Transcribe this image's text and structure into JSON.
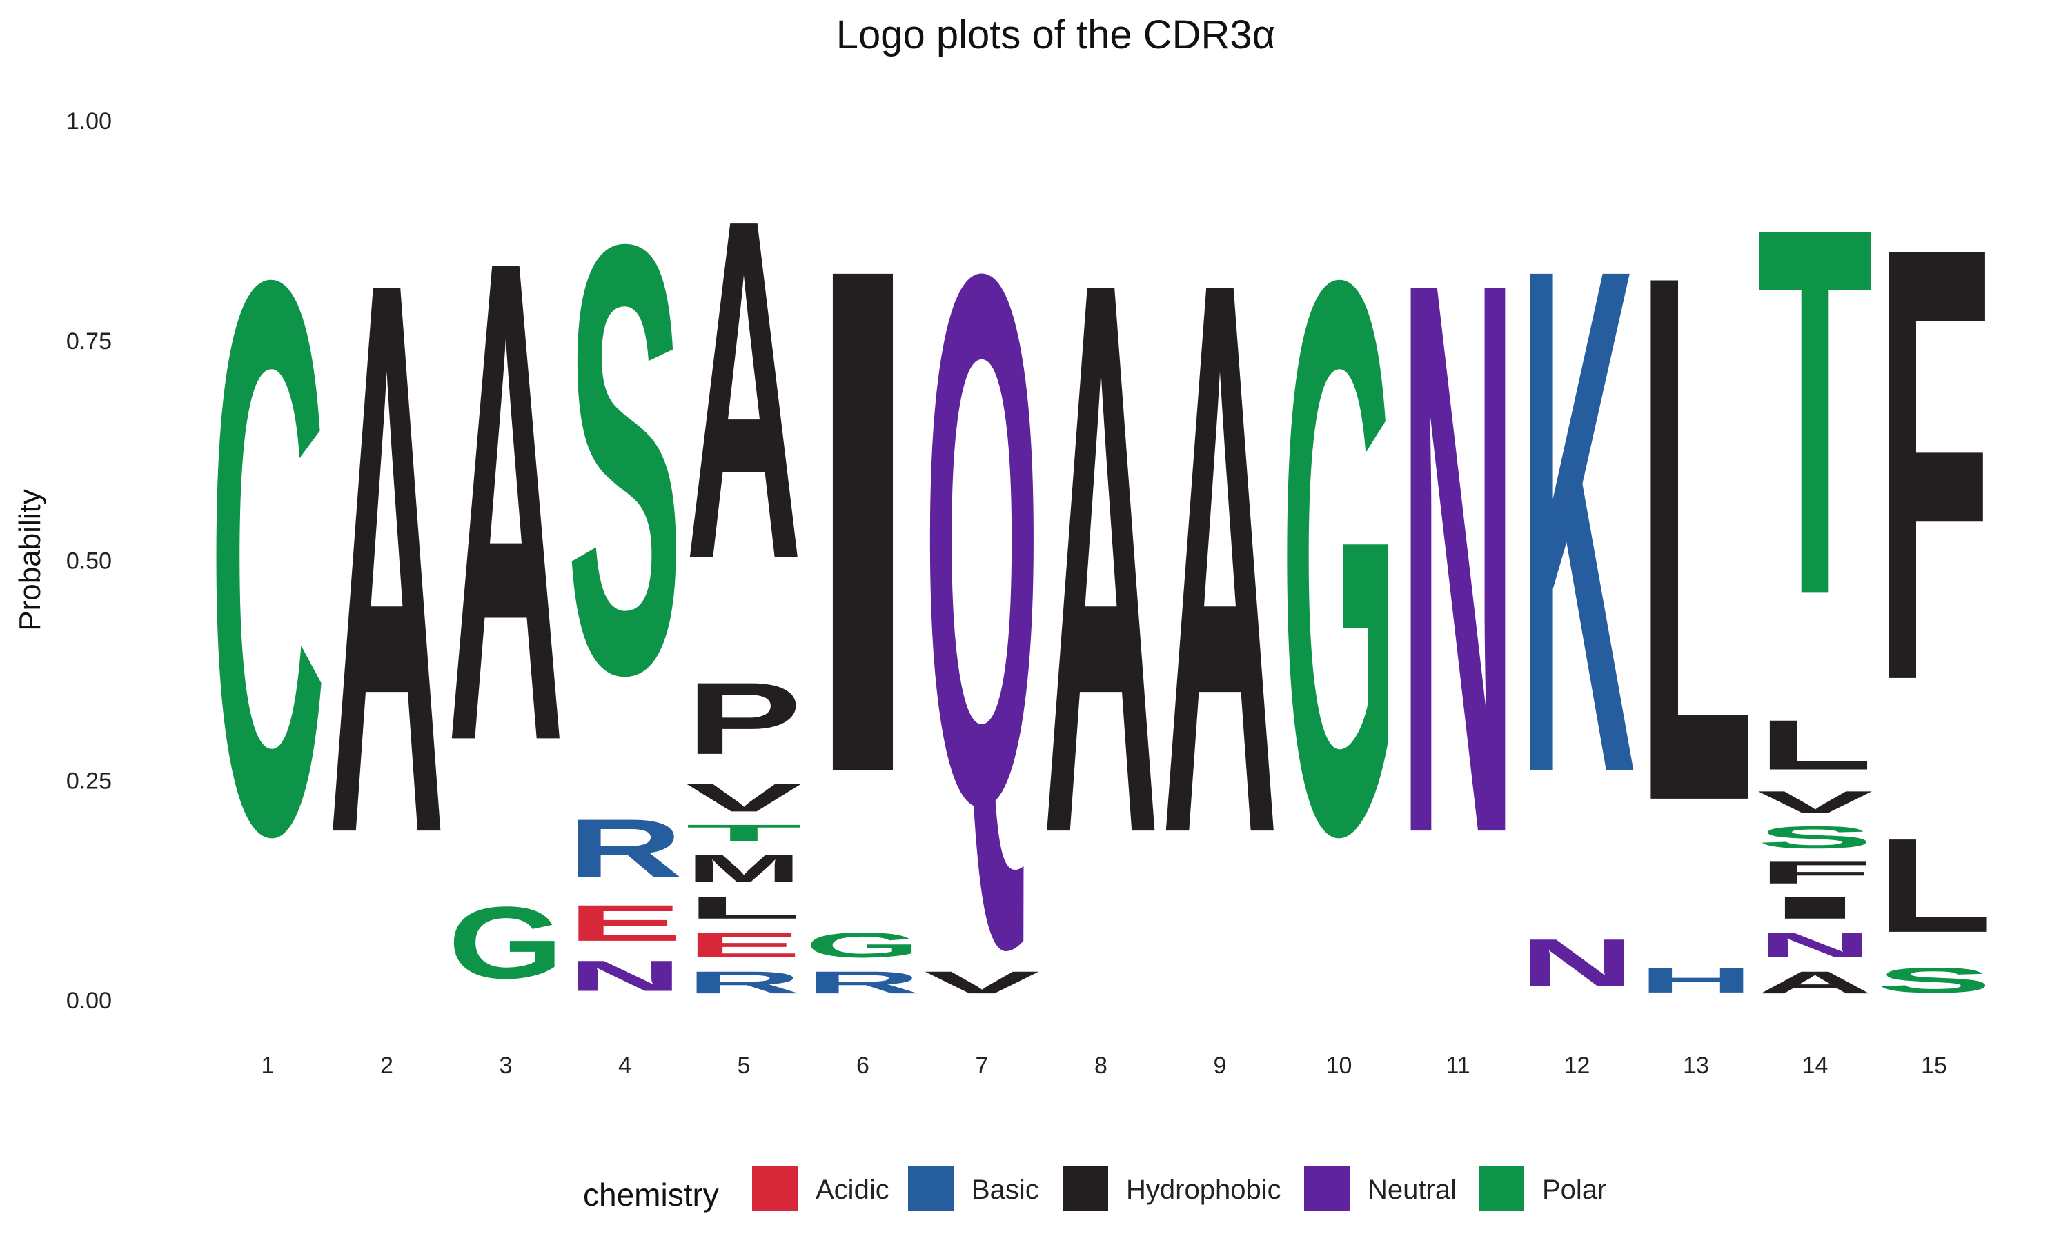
{
  "chart_data": {
    "type": "sequence-logo",
    "title": "Logo plots of the CDR3α",
    "ylabel": "Probability",
    "xlabel": "",
    "ylim": [
      0,
      1
    ],
    "yticks": [
      "0.00",
      "0.25",
      "0.50",
      "0.75",
      "1.00"
    ],
    "ytick_values": [
      0,
      0.25,
      0.5,
      0.75,
      1
    ],
    "grid": false,
    "legend": {
      "title": "chemistry",
      "placement": "bottom",
      "entries": [
        {
          "name": "Acidic",
          "color": "#D62839"
        },
        {
          "name": "Basic",
          "color": "#265D9E"
        },
        {
          "name": "Hydrophobic",
          "color": "#231F20"
        },
        {
          "name": "Neutral",
          "color": "#5E239D"
        },
        {
          "name": "Polar",
          "color": "#0E9448"
        }
      ]
    },
    "colors": {
      "Acidic": "#D62839",
      "Basic": "#265D9E",
      "Hydrophobic": "#231F20",
      "Neutral": "#5E239D",
      "Polar": "#0E9448"
    },
    "positions": [
      {
        "pos": "1",
        "letters": [
          {
            "aa": "C",
            "p": 1.0,
            "chem": "Polar"
          }
        ]
      },
      {
        "pos": "2",
        "letters": [
          {
            "aa": "A",
            "p": 1.0,
            "chem": "Hydrophobic"
          }
        ]
      },
      {
        "pos": "3",
        "letters": [
          {
            "aa": "G",
            "p": 0.13,
            "chem": "Polar"
          },
          {
            "aa": "A",
            "p": 0.87,
            "chem": "Hydrophobic"
          }
        ]
      },
      {
        "pos": "4",
        "letters": [
          {
            "aa": "N",
            "p": 0.055,
            "chem": "Neutral"
          },
          {
            "aa": "E",
            "p": 0.065,
            "chem": "Acidic"
          },
          {
            "aa": "R",
            "p": 0.105,
            "chem": "Basic"
          },
          {
            "aa": "S",
            "p": 0.775,
            "chem": "Polar"
          }
        ]
      },
      {
        "pos": "5",
        "letters": [
          {
            "aa": "R",
            "p": 0.04,
            "chem": "Basic"
          },
          {
            "aa": "E",
            "p": 0.045,
            "chem": "Acidic"
          },
          {
            "aa": "L",
            "p": 0.04,
            "chem": "Hydrophobic"
          },
          {
            "aa": "M",
            "p": 0.05,
            "chem": "Hydrophobic"
          },
          {
            "aa": "T",
            "p": 0.03,
            "chem": "Polar"
          },
          {
            "aa": "V",
            "p": 0.05,
            "chem": "Hydrophobic"
          },
          {
            "aa": "P",
            "p": 0.13,
            "chem": "Hydrophobic"
          },
          {
            "aa": "A",
            "p": 0.615,
            "chem": "Hydrophobic"
          }
        ]
      },
      {
        "pos": "6",
        "letters": [
          {
            "aa": "R",
            "p": 0.04,
            "chem": "Basic"
          },
          {
            "aa": "G",
            "p": 0.045,
            "chem": "Polar"
          },
          {
            "aa": "I",
            "p": 0.915,
            "chem": "Hydrophobic"
          }
        ]
      },
      {
        "pos": "7",
        "letters": [
          {
            "aa": "V",
            "p": 0.04,
            "chem": "Hydrophobic"
          },
          {
            "aa": "Q",
            "p": 0.96,
            "chem": "Neutral"
          }
        ]
      },
      {
        "pos": "8",
        "letters": [
          {
            "aa": "A",
            "p": 1.0,
            "chem": "Hydrophobic"
          }
        ]
      },
      {
        "pos": "9",
        "letters": [
          {
            "aa": "A",
            "p": 1.0,
            "chem": "Hydrophobic"
          }
        ]
      },
      {
        "pos": "10",
        "letters": [
          {
            "aa": "G",
            "p": 1.0,
            "chem": "Polar"
          }
        ]
      },
      {
        "pos": "11",
        "letters": [
          {
            "aa": "N",
            "p": 1.0,
            "chem": "Neutral"
          }
        ]
      },
      {
        "pos": "12",
        "letters": [
          {
            "aa": "N",
            "p": 0.085,
            "chem": "Neutral"
          },
          {
            "aa": "K",
            "p": 0.915,
            "chem": "Basic"
          }
        ]
      },
      {
        "pos": "13",
        "letters": [
          {
            "aa": "H",
            "p": 0.045,
            "chem": "Basic"
          },
          {
            "aa": "L",
            "p": 0.955,
            "chem": "Hydrophobic"
          }
        ]
      },
      {
        "pos": "14",
        "letters": [
          {
            "aa": "A",
            "p": 0.04,
            "chem": "Hydrophobic"
          },
          {
            "aa": "N",
            "p": 0.045,
            "chem": "Neutral"
          },
          {
            "aa": "I",
            "p": 0.04,
            "chem": "Hydrophobic"
          },
          {
            "aa": "F",
            "p": 0.04,
            "chem": "Hydrophobic"
          },
          {
            "aa": "S",
            "p": 0.04,
            "chem": "Polar"
          },
          {
            "aa": "V",
            "p": 0.04,
            "chem": "Hydrophobic"
          },
          {
            "aa": "L",
            "p": 0.09,
            "chem": "Hydrophobic"
          },
          {
            "aa": "T",
            "p": 0.665,
            "chem": "Polar"
          }
        ]
      },
      {
        "pos": "15",
        "letters": [
          {
            "aa": "S",
            "p": 0.045,
            "chem": "Polar"
          },
          {
            "aa": "L",
            "p": 0.17,
            "chem": "Hydrophobic"
          },
          {
            "aa": "F",
            "p": 0.785,
            "chem": "Hydrophobic"
          }
        ]
      }
    ]
  }
}
